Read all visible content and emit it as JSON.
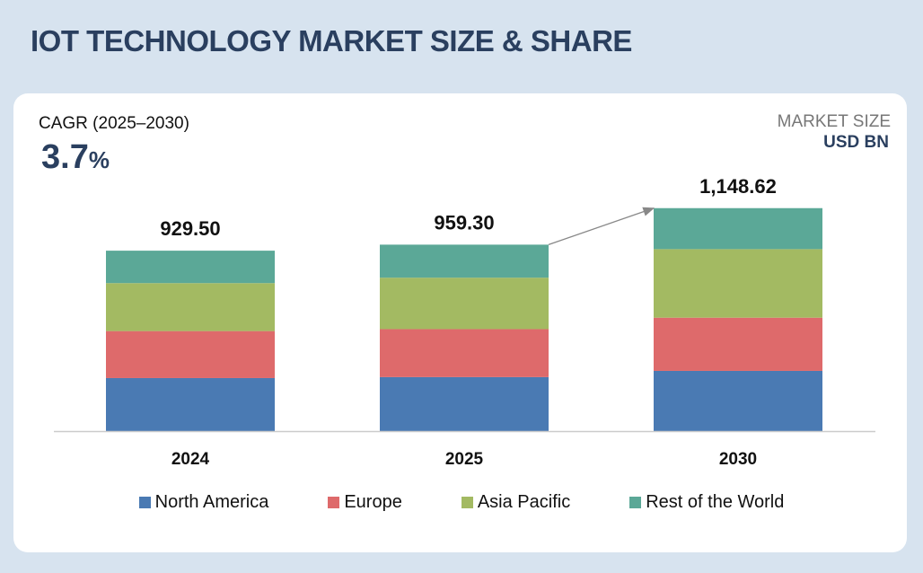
{
  "title": "IOT TECHNOLOGY MARKET SIZE & SHARE",
  "cagr": {
    "label": "CAGR (2025–2030)",
    "value": "3.7",
    "unit": "%"
  },
  "market_size": {
    "label": "MARKET SIZE",
    "unit": "USD BN"
  },
  "chart_data": {
    "type": "bar",
    "stacked": true,
    "categories": [
      "2024",
      "2025",
      "2030"
    ],
    "totals": [
      "929.50",
      "959.30",
      "1,148.62"
    ],
    "total_values": [
      929.5,
      959.3,
      1148.62
    ],
    "series": [
      {
        "name": "North America",
        "color": "#4a7ab3",
        "values": [
          273,
          278,
          310
        ]
      },
      {
        "name": "Europe",
        "color": "#de6a6b",
        "values": [
          242,
          247,
          274
        ]
      },
      {
        "name": "Asia Pacific",
        "color": "#a3ba62",
        "values": [
          247,
          265,
          353
        ]
      },
      {
        "name": "Rest of the World",
        "color": "#5ba897",
        "values": [
          167,
          170,
          211
        ]
      }
    ],
    "ylim": [
      0,
      1200
    ],
    "grid": false,
    "legend": "bottom",
    "annotation": "arrow from 2025 to 2030"
  }
}
